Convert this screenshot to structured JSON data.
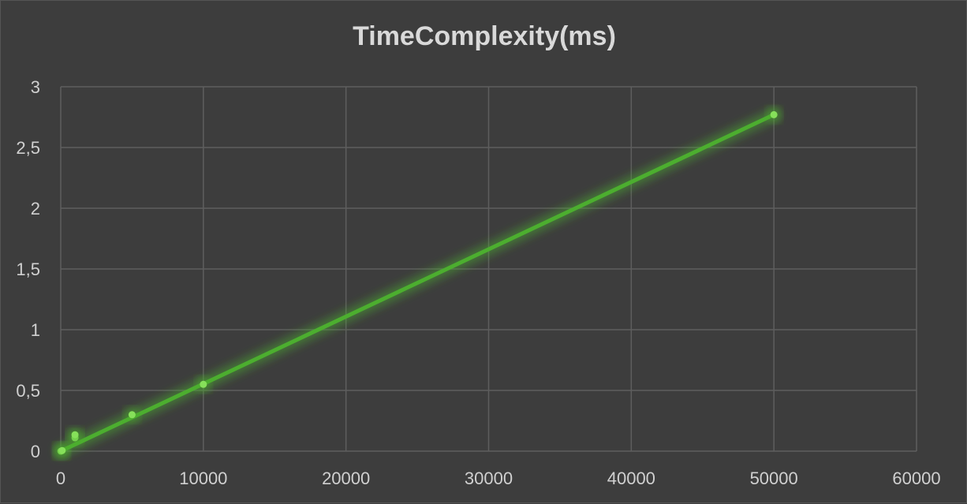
{
  "chart_data": {
    "type": "scatter",
    "title": "TimeComplexity(ms)",
    "xlabel": "",
    "ylabel": "",
    "xlim": [
      0,
      60000
    ],
    "ylim": [
      0,
      3
    ],
    "x_ticks": [
      "0",
      "10000",
      "20000",
      "30000",
      "40000",
      "50000",
      "60000"
    ],
    "y_ticks": [
      "0",
      "0,5",
      "1",
      "1,5",
      "2",
      "2,5",
      "3"
    ],
    "grid": true,
    "legend": "none",
    "series": [
      {
        "points": [
          {
            "x": 10,
            "y": 0.0
          },
          {
            "x": 100,
            "y": 0.005
          },
          {
            "x": 1000,
            "y": 0.11
          },
          {
            "x": 1000,
            "y": 0.135
          },
          {
            "x": 5000,
            "y": 0.3
          },
          {
            "x": 10000,
            "y": 0.55
          },
          {
            "x": 50000,
            "y": 2.77
          }
        ],
        "trendline": {
          "type": "linear",
          "x": [
            0,
            50000
          ],
          "y": [
            0.0,
            2.77
          ]
        },
        "color": "#4cae2f",
        "marker_color": "#86e05a"
      }
    ]
  }
}
